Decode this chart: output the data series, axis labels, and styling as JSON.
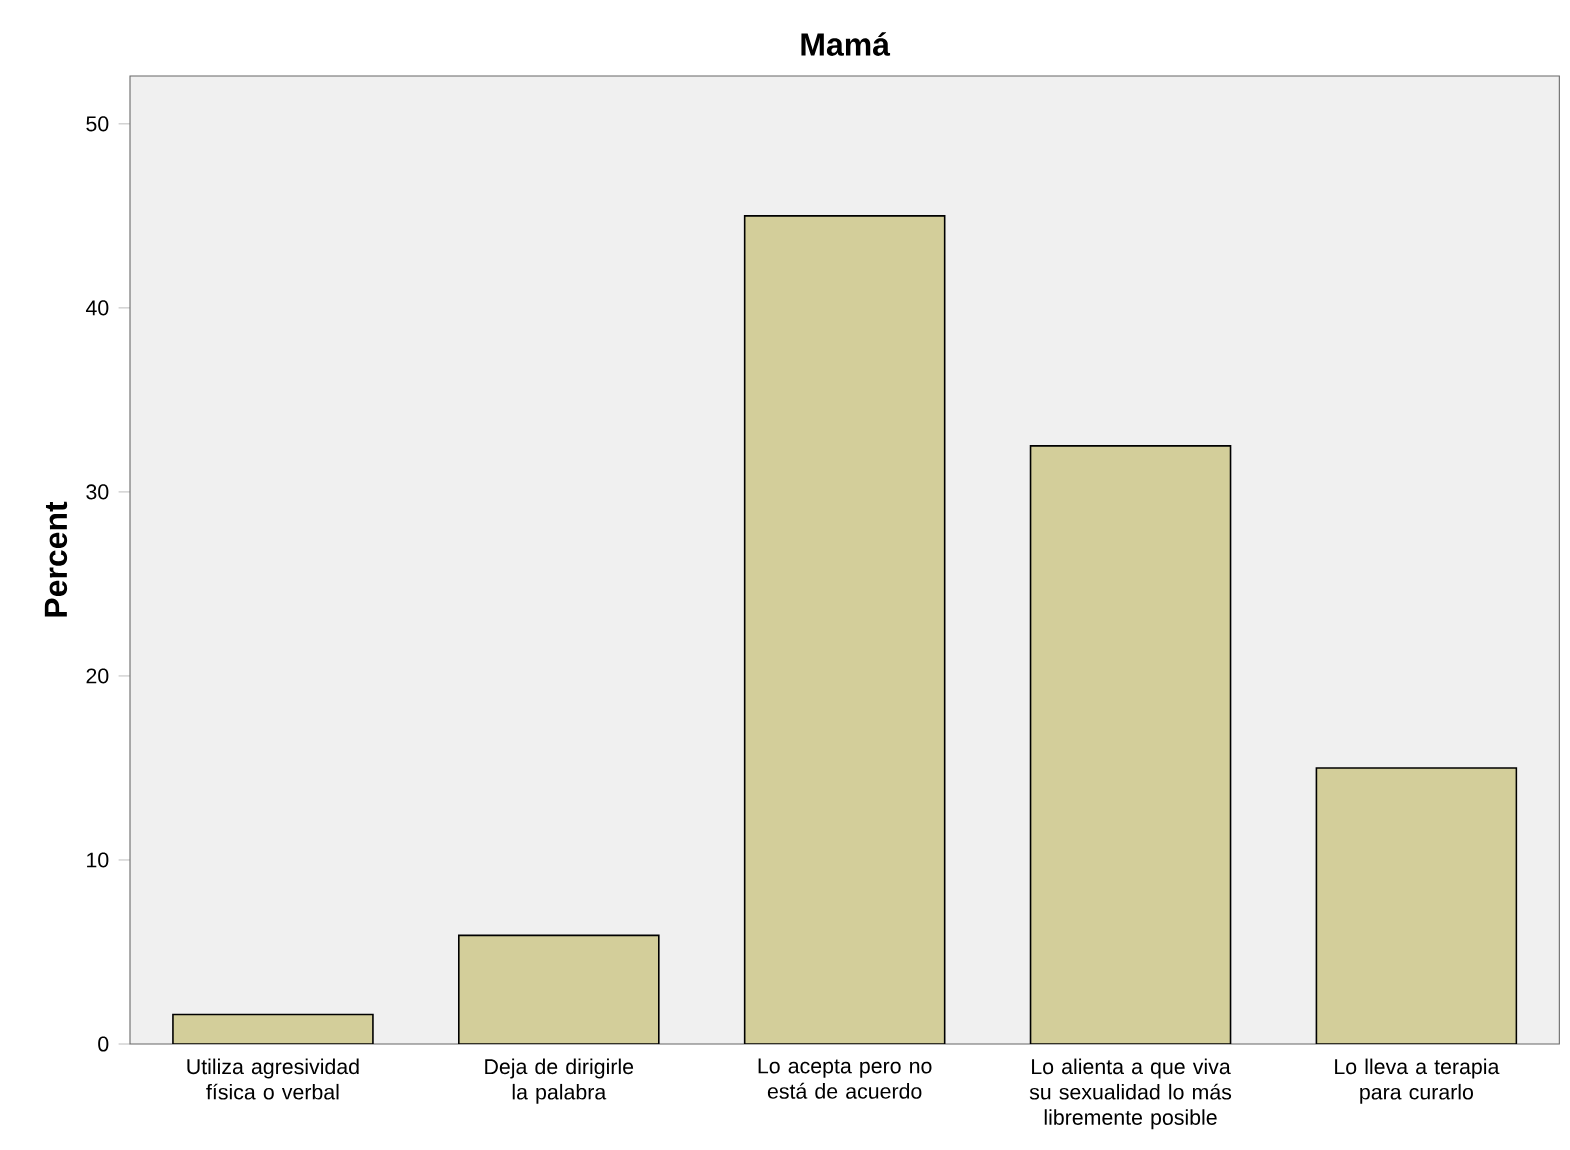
{
  "chart_data": {
    "type": "bar",
    "title": "Mamá",
    "ylabel": "Percent",
    "categories": [
      "Utiliza agresividad física o verbal",
      "Deja de dirigirle la palabra",
      "Lo acepta pero no está de acuerdo",
      "Lo alienta a que viva su sexualidad lo más libremente posible",
      "Lo lleva a terapia para curarlo"
    ],
    "values": [
      1.6,
      5.9,
      45.0,
      32.5,
      15.0
    ],
    "color": "#d3ce9a",
    "ylim": [
      0,
      52.6
    ],
    "yticks": [
      0,
      10,
      20,
      30,
      40,
      50
    ],
    "grid": false
  }
}
